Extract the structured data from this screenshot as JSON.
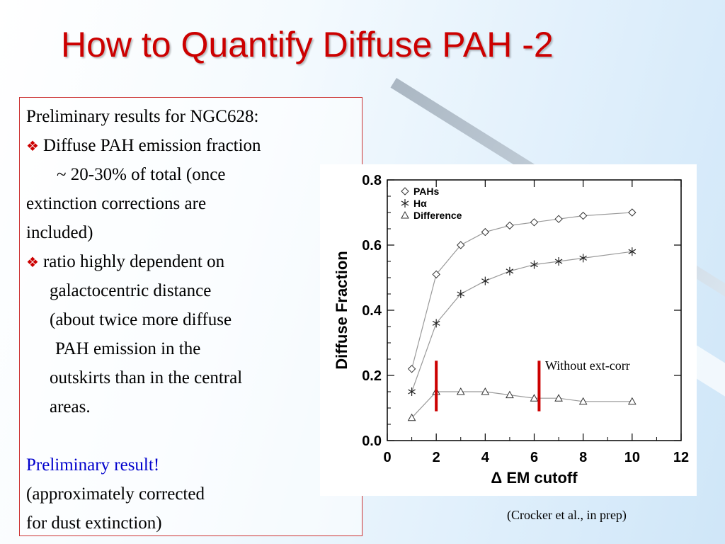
{
  "slide": {
    "title": "How to Quantify Diffuse PAH -2",
    "credit": "(Crocker et al., in prep)",
    "text": {
      "line1": "Preliminary results for NGC628:",
      "bullet1_a": "Diffuse PAH emission fraction",
      "bullet1_b": "~ 20-30% of total (once",
      "bullet1_c": "extinction corrections are",
      "bullet1_d": "included)",
      "bullet2_a": "ratio highly dependent on",
      "bullet2_b": "galactocentric distance",
      "bullet2_c": "(about twice more diffuse",
      "bullet2_d": "PAH emission in the",
      "bullet2_e": "outskirts than in the central",
      "bullet2_f": "areas.",
      "prelim": "Preliminary result!",
      "note1": "(approximately corrected",
      "note2": "for dust extinction)"
    },
    "colors": {
      "title": "#cc0000",
      "accent": "#cc0000",
      "highlight": "#0000cc"
    }
  },
  "chart_data": {
    "type": "line",
    "xlabel": "Δ EM cutoff",
    "ylabel": "Diffuse Fraction",
    "xlim": [
      0,
      12
    ],
    "ylim": [
      0,
      0.8
    ],
    "xticks": [
      "0",
      "2",
      "4",
      "6",
      "8",
      "10",
      "12"
    ],
    "yticks": [
      "0.0",
      "0.2",
      "0.4",
      "0.6",
      "0.8"
    ],
    "x": [
      1,
      2,
      3,
      4,
      5,
      6,
      7,
      8,
      10
    ],
    "series": [
      {
        "name": "PAHs",
        "marker": "diamond",
        "values": [
          0.22,
          0.51,
          0.6,
          0.64,
          0.66,
          0.67,
          0.68,
          0.69,
          0.7
        ]
      },
      {
        "name": "Hα",
        "marker": "asterisk",
        "values": [
          0.15,
          0.36,
          0.45,
          0.49,
          0.52,
          0.54,
          0.55,
          0.56,
          0.58
        ]
      },
      {
        "name": "Difference",
        "marker": "triangle",
        "values": [
          0.07,
          0.15,
          0.15,
          0.15,
          0.14,
          0.13,
          0.13,
          0.12,
          0.12
        ]
      }
    ],
    "markers_vertical": [
      2,
      6.2
    ],
    "annotation": "Without ext-corr",
    "legend_position": "top-left",
    "line_color": "#999999",
    "marker_line_color": "#cc0000"
  }
}
